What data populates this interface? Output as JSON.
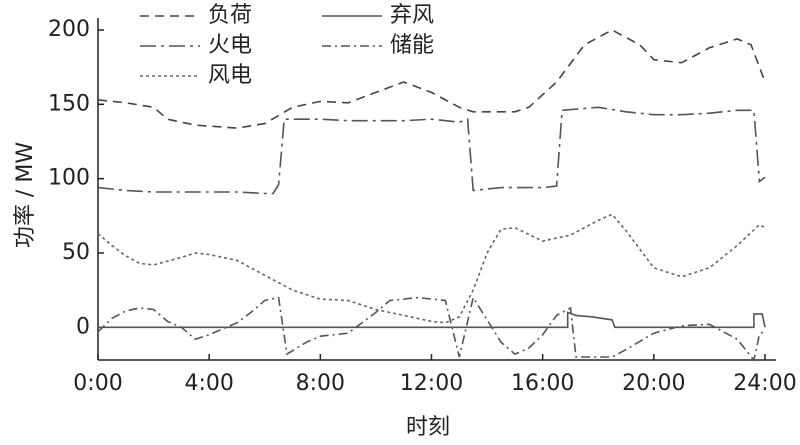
{
  "chart_data": {
    "type": "line",
    "x_label": "时刻",
    "y_label": "功率 / MW",
    "xlim": [
      0,
      24.4
    ],
    "ylim": [
      -22,
      200
    ],
    "xticks": [
      {
        "value": 0,
        "label": "0:00"
      },
      {
        "value": 4,
        "label": "4:00"
      },
      {
        "value": 8,
        "label": "8:00"
      },
      {
        "value": 12,
        "label": "12:00"
      },
      {
        "value": 16,
        "label": "16:00"
      },
      {
        "value": 20,
        "label": "20:00"
      },
      {
        "value": 24,
        "label": "24:00"
      }
    ],
    "yticks": [
      0,
      50,
      100,
      150,
      200
    ],
    "series": [
      {
        "name": "负荷",
        "color": "#444",
        "style": "dashed",
        "x": [
          0,
          1,
          2,
          2.5,
          3.5,
          5,
          6,
          7,
          8,
          9,
          10,
          11,
          12,
          13,
          13.5,
          15,
          15.5,
          16.5,
          17.5,
          18.5,
          19.5,
          20,
          21,
          22,
          23,
          23.5,
          24
        ],
        "values": [
          153,
          151,
          148,
          140,
          136,
          134,
          137,
          148,
          152,
          151,
          158,
          165,
          158,
          148,
          145,
          145,
          148,
          165,
          190,
          200,
          190,
          180,
          178,
          188,
          194,
          190,
          165
        ]
      },
      {
        "name": "弃风",
        "color": "#555",
        "style": "solid",
        "x": [
          0,
          16.9,
          16.9,
          17.2,
          17.8,
          18.5,
          18.6,
          23.6,
          23.6,
          23.9,
          24
        ],
        "values": [
          0,
          0,
          10,
          8,
          7,
          5,
          0,
          0,
          9,
          9,
          0
        ]
      },
      {
        "name": "火电",
        "color": "#555",
        "style": "dashdot-long",
        "x": [
          0,
          1,
          2,
          4,
          5,
          6,
          6.3,
          6.5,
          6.7,
          8,
          9,
          11,
          12,
          13,
          13.3,
          13.5,
          14.5,
          16,
          16.5,
          16.7,
          18,
          19,
          20,
          21,
          22,
          23,
          23.6,
          23.8,
          24
        ],
        "values": [
          94,
          92,
          91,
          91,
          91,
          90,
          90,
          96,
          140,
          140,
          139,
          139,
          140,
          138,
          140,
          92,
          94,
          94,
          95,
          146,
          148,
          145,
          143,
          143,
          144,
          146,
          146,
          98,
          101
        ]
      },
      {
        "name": "储能",
        "color": "#555",
        "style": "dashdot",
        "x": [
          0,
          0.5,
          1,
          1.5,
          2,
          2.5,
          3,
          3.5,
          4,
          5,
          5.5,
          6,
          6.5,
          6.8,
          7.5,
          8,
          9,
          10,
          10.5,
          11.5,
          12.5,
          13,
          13.5,
          14,
          14.5,
          15,
          15.5,
          16,
          16.5,
          17,
          17.2,
          18.5,
          19,
          20,
          21,
          22,
          23,
          23.6,
          23.8,
          24
        ],
        "values": [
          -3,
          6,
          11,
          13,
          12,
          4,
          0,
          -8,
          -5,
          3,
          10,
          18,
          20,
          -18,
          -10,
          -6,
          -4,
          10,
          18,
          20,
          18,
          -20,
          20,
          5,
          -10,
          -18,
          -14,
          -5,
          8,
          13,
          -20,
          -20,
          -15,
          -4,
          1,
          2,
          -8,
          -22,
          -5,
          -2
        ]
      },
      {
        "name": "风电",
        "color": "#666",
        "style": "dotted",
        "x": [
          0,
          0.5,
          1,
          1.5,
          2,
          3,
          3.5,
          4,
          5,
          6,
          7,
          8,
          9,
          10,
          11,
          12,
          12.5,
          13,
          13.5,
          14,
          14.5,
          15,
          16,
          17,
          18,
          18.5,
          19,
          20,
          21,
          22,
          23,
          23.8,
          24
        ],
        "values": [
          63,
          55,
          48,
          43,
          42,
          47,
          50,
          49,
          45,
          35,
          25,
          19,
          18,
          12,
          8,
          4,
          3,
          7,
          25,
          50,
          66,
          67,
          58,
          62,
          72,
          76,
          65,
          40,
          34,
          40,
          55,
          69,
          67
        ]
      }
    ]
  }
}
